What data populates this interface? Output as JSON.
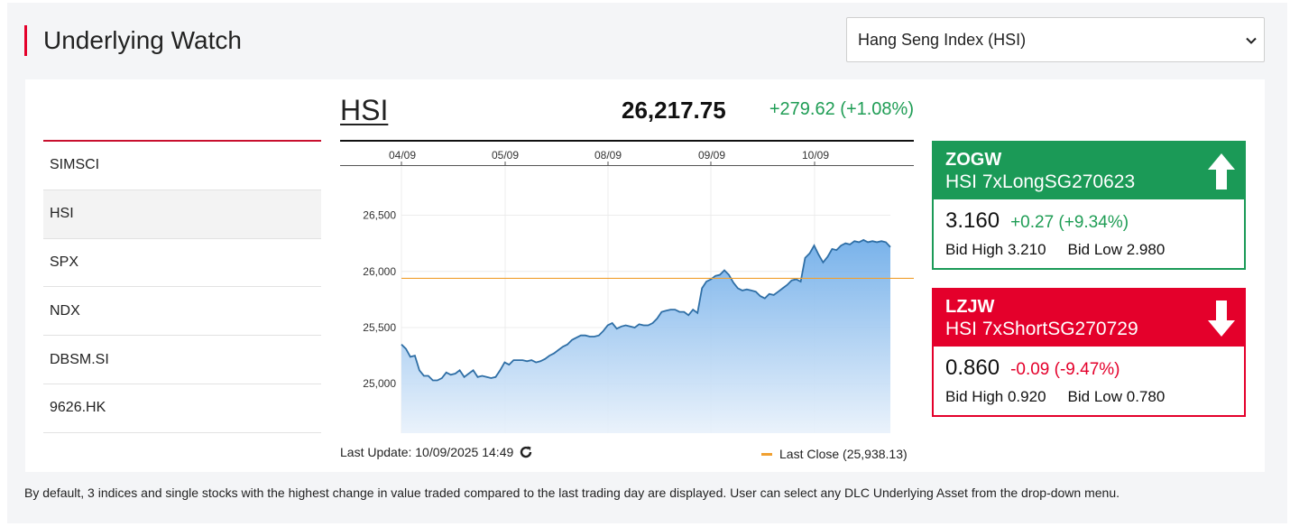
{
  "page_title": "Underlying Watch",
  "select": {
    "value": "Hang Seng Index (HSI)"
  },
  "index_list": [
    {
      "label": "SIMSCI",
      "active": false
    },
    {
      "label": "HSI",
      "active": true
    },
    {
      "label": "SPX",
      "active": false
    },
    {
      "label": "NDX",
      "active": false
    },
    {
      "label": "DBSM.SI",
      "active": false
    },
    {
      "label": "9626.HK",
      "active": false
    }
  ],
  "chart_header": {
    "symbol": "HSI",
    "last": "26,217.75",
    "change": "+279.62 (+1.08%)"
  },
  "chart_data": {
    "type": "area",
    "x_ticks": [
      "04/09",
      "05/09",
      "08/09",
      "09/09",
      "10/09"
    ],
    "y_ticks": [
      "26,500",
      "26,000",
      "25,500",
      "25,000"
    ],
    "ylim": [
      24560,
      26930
    ],
    "reference_line": {
      "label": "Last Close (25,938.13)",
      "value": 25938.13
    },
    "series": [
      {
        "values": [
          25350,
          25310,
          25240,
          25250,
          25120,
          25070,
          25070,
          25030,
          25030,
          25050,
          25100,
          25080,
          25090,
          25120,
          25060,
          25090,
          25120,
          25060,
          25070,
          25060,
          25050,
          25060,
          25120,
          25190,
          25170,
          25210,
          25210,
          25210,
          25200,
          25210,
          25190,
          25200,
          25220,
          25250,
          25270,
          25300,
          25330,
          25350,
          25390,
          25410,
          25430,
          25430,
          25420,
          25420,
          25430,
          25470,
          25520,
          25540,
          25490,
          25510,
          25520,
          25510,
          25500,
          25530,
          25520,
          25520,
          25540,
          25580,
          25640,
          25650,
          25660,
          25660,
          25640,
          25640,
          25610,
          25660,
          25630,
          25850,
          25910,
          25930,
          25960,
          25970,
          26010,
          25970,
          25900,
          25850,
          25830,
          25840,
          25830,
          25820,
          25780,
          25760,
          25800,
          25790,
          25820,
          25850,
          25880,
          25920,
          25930,
          25910,
          26120,
          26160,
          26230,
          26150,
          26080,
          26130,
          26200,
          26190,
          26230,
          26250,
          26240,
          26270,
          26260,
          26280,
          26260,
          26270,
          26260,
          26270,
          26260,
          26217.75
        ]
      }
    ],
    "grid": true
  },
  "chart_footer": {
    "last_update": "Last Update: 10/09/2025 14:49",
    "last_close": "Last Close (25,938.13)"
  },
  "cards": [
    {
      "code": "ZOGW",
      "name": "HSI 7xLongSG270623",
      "price": "3.160",
      "change": "+0.27 (+9.34%)",
      "bid_high": "Bid High 3.210",
      "bid_low": "Bid Low 2.980",
      "direction": "up",
      "color": "#1b9a57"
    },
    {
      "code": "LZJW",
      "name": "HSI 7xShortSG270729",
      "price": "0.860",
      "change": "-0.09 (-9.47%)",
      "bid_high": "Bid High 0.920",
      "bid_low": "Bid Low 0.780",
      "direction": "down",
      "color": "#e4002b"
    }
  ],
  "disclaimer": "By default, 3 indices and single stocks with the highest change in value traded compared to the last trading day are displayed. User can select any DLC Underlying Asset from the drop-down menu.",
  "colors": {
    "accent_red": "#e4002b",
    "up_green": "#1b9a57",
    "line_blue": "#2f6fa6",
    "last_close_orange": "#f0a030"
  },
  "icons": {
    "select": "chevron-down-icon",
    "refresh": "refresh-icon",
    "up": "arrow-up-icon",
    "down": "arrow-down-icon"
  }
}
